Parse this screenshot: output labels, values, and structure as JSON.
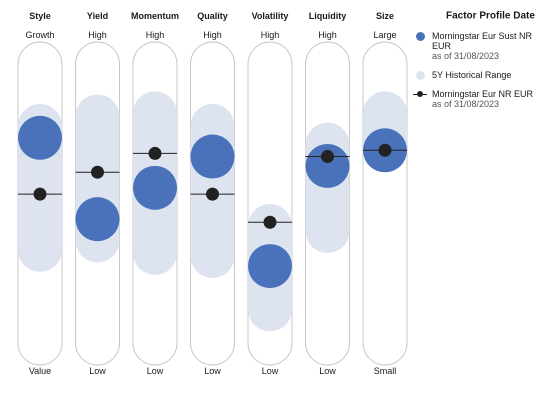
{
  "legend": {
    "title": "Factor Profile Date",
    "info_icon": "i",
    "items": [
      {
        "label": "Morningstar Eur Sust NR EUR",
        "sub": "as of 31/08/2023",
        "color": "#4a72bb",
        "shape": "circle"
      },
      {
        "label": "5Y Historical Range",
        "sub": "",
        "color": "#dde4f0",
        "shape": "circle"
      },
      {
        "label": "Morningstar Eur NR EUR",
        "sub": "as of 31/08/2023",
        "color": "#222222",
        "shape": "line-dot"
      }
    ]
  },
  "chart_data": {
    "type": "scatter",
    "title": "",
    "value_scale": [
      0,
      100
    ],
    "colors": {
      "fund": "#4a72bb",
      "range": "#dde4f0",
      "benchmark": "#222222",
      "track_border": "#c8c8c8"
    },
    "factors": [
      {
        "name": "Style",
        "top_label": "Growth",
        "bottom_label": "Value",
        "fund": 71,
        "benchmark": 53,
        "range": [
          32,
          78
        ]
      },
      {
        "name": "Yield",
        "top_label": "High",
        "bottom_label": "Low",
        "fund": 45,
        "benchmark": 60,
        "range": [
          35,
          81
        ]
      },
      {
        "name": "Momentum",
        "top_label": "High",
        "bottom_label": "Low",
        "fund": 55,
        "benchmark": 66,
        "range": [
          31,
          82
        ]
      },
      {
        "name": "Quality",
        "top_label": "High",
        "bottom_label": "Low",
        "fund": 65,
        "benchmark": 53,
        "range": [
          30,
          78
        ]
      },
      {
        "name": "Volatility",
        "top_label": "High",
        "bottom_label": "Low",
        "fund": 30,
        "benchmark": 44,
        "range": [
          13,
          46
        ]
      },
      {
        "name": "Liquidity",
        "top_label": "High",
        "bottom_label": "Low",
        "fund": 62,
        "benchmark": 65,
        "range": [
          38,
          72
        ]
      },
      {
        "name": "Size",
        "top_label": "Large",
        "bottom_label": "Small",
        "fund": 67,
        "benchmark": 67,
        "range": [
          65,
          82
        ]
      }
    ]
  }
}
